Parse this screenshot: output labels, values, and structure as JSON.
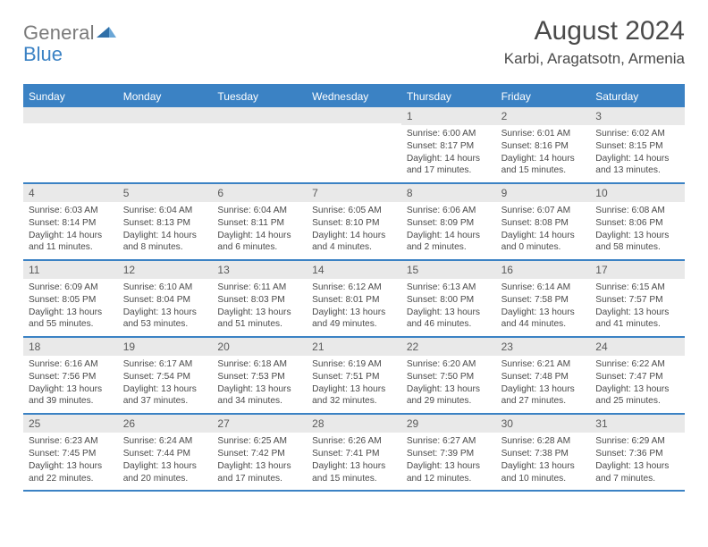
{
  "brand": {
    "part1": "General",
    "part2": "Blue"
  },
  "title": "August 2024",
  "location": "Karbi, Aragatsotn, Armenia",
  "colors": {
    "accent": "#3b82c4",
    "header_bg": "#3b82c4",
    "daynum_bg": "#e9e9e9",
    "text_dark": "#4a4a4a",
    "text_muted": "#7a7a7a",
    "white": "#ffffff"
  },
  "dow": [
    "Sunday",
    "Monday",
    "Tuesday",
    "Wednesday",
    "Thursday",
    "Friday",
    "Saturday"
  ],
  "weeks": [
    [
      {
        "n": "",
        "sr": "",
        "ss": "",
        "dl": ""
      },
      {
        "n": "",
        "sr": "",
        "ss": "",
        "dl": ""
      },
      {
        "n": "",
        "sr": "",
        "ss": "",
        "dl": ""
      },
      {
        "n": "",
        "sr": "",
        "ss": "",
        "dl": ""
      },
      {
        "n": "1",
        "sr": "Sunrise: 6:00 AM",
        "ss": "Sunset: 8:17 PM",
        "dl": "Daylight: 14 hours and 17 minutes."
      },
      {
        "n": "2",
        "sr": "Sunrise: 6:01 AM",
        "ss": "Sunset: 8:16 PM",
        "dl": "Daylight: 14 hours and 15 minutes."
      },
      {
        "n": "3",
        "sr": "Sunrise: 6:02 AM",
        "ss": "Sunset: 8:15 PM",
        "dl": "Daylight: 14 hours and 13 minutes."
      }
    ],
    [
      {
        "n": "4",
        "sr": "Sunrise: 6:03 AM",
        "ss": "Sunset: 8:14 PM",
        "dl": "Daylight: 14 hours and 11 minutes."
      },
      {
        "n": "5",
        "sr": "Sunrise: 6:04 AM",
        "ss": "Sunset: 8:13 PM",
        "dl": "Daylight: 14 hours and 8 minutes."
      },
      {
        "n": "6",
        "sr": "Sunrise: 6:04 AM",
        "ss": "Sunset: 8:11 PM",
        "dl": "Daylight: 14 hours and 6 minutes."
      },
      {
        "n": "7",
        "sr": "Sunrise: 6:05 AM",
        "ss": "Sunset: 8:10 PM",
        "dl": "Daylight: 14 hours and 4 minutes."
      },
      {
        "n": "8",
        "sr": "Sunrise: 6:06 AM",
        "ss": "Sunset: 8:09 PM",
        "dl": "Daylight: 14 hours and 2 minutes."
      },
      {
        "n": "9",
        "sr": "Sunrise: 6:07 AM",
        "ss": "Sunset: 8:08 PM",
        "dl": "Daylight: 14 hours and 0 minutes."
      },
      {
        "n": "10",
        "sr": "Sunrise: 6:08 AM",
        "ss": "Sunset: 8:06 PM",
        "dl": "Daylight: 13 hours and 58 minutes."
      }
    ],
    [
      {
        "n": "11",
        "sr": "Sunrise: 6:09 AM",
        "ss": "Sunset: 8:05 PM",
        "dl": "Daylight: 13 hours and 55 minutes."
      },
      {
        "n": "12",
        "sr": "Sunrise: 6:10 AM",
        "ss": "Sunset: 8:04 PM",
        "dl": "Daylight: 13 hours and 53 minutes."
      },
      {
        "n": "13",
        "sr": "Sunrise: 6:11 AM",
        "ss": "Sunset: 8:03 PM",
        "dl": "Daylight: 13 hours and 51 minutes."
      },
      {
        "n": "14",
        "sr": "Sunrise: 6:12 AM",
        "ss": "Sunset: 8:01 PM",
        "dl": "Daylight: 13 hours and 49 minutes."
      },
      {
        "n": "15",
        "sr": "Sunrise: 6:13 AM",
        "ss": "Sunset: 8:00 PM",
        "dl": "Daylight: 13 hours and 46 minutes."
      },
      {
        "n": "16",
        "sr": "Sunrise: 6:14 AM",
        "ss": "Sunset: 7:58 PM",
        "dl": "Daylight: 13 hours and 44 minutes."
      },
      {
        "n": "17",
        "sr": "Sunrise: 6:15 AM",
        "ss": "Sunset: 7:57 PM",
        "dl": "Daylight: 13 hours and 41 minutes."
      }
    ],
    [
      {
        "n": "18",
        "sr": "Sunrise: 6:16 AM",
        "ss": "Sunset: 7:56 PM",
        "dl": "Daylight: 13 hours and 39 minutes."
      },
      {
        "n": "19",
        "sr": "Sunrise: 6:17 AM",
        "ss": "Sunset: 7:54 PM",
        "dl": "Daylight: 13 hours and 37 minutes."
      },
      {
        "n": "20",
        "sr": "Sunrise: 6:18 AM",
        "ss": "Sunset: 7:53 PM",
        "dl": "Daylight: 13 hours and 34 minutes."
      },
      {
        "n": "21",
        "sr": "Sunrise: 6:19 AM",
        "ss": "Sunset: 7:51 PM",
        "dl": "Daylight: 13 hours and 32 minutes."
      },
      {
        "n": "22",
        "sr": "Sunrise: 6:20 AM",
        "ss": "Sunset: 7:50 PM",
        "dl": "Daylight: 13 hours and 29 minutes."
      },
      {
        "n": "23",
        "sr": "Sunrise: 6:21 AM",
        "ss": "Sunset: 7:48 PM",
        "dl": "Daylight: 13 hours and 27 minutes."
      },
      {
        "n": "24",
        "sr": "Sunrise: 6:22 AM",
        "ss": "Sunset: 7:47 PM",
        "dl": "Daylight: 13 hours and 25 minutes."
      }
    ],
    [
      {
        "n": "25",
        "sr": "Sunrise: 6:23 AM",
        "ss": "Sunset: 7:45 PM",
        "dl": "Daylight: 13 hours and 22 minutes."
      },
      {
        "n": "26",
        "sr": "Sunrise: 6:24 AM",
        "ss": "Sunset: 7:44 PM",
        "dl": "Daylight: 13 hours and 20 minutes."
      },
      {
        "n": "27",
        "sr": "Sunrise: 6:25 AM",
        "ss": "Sunset: 7:42 PM",
        "dl": "Daylight: 13 hours and 17 minutes."
      },
      {
        "n": "28",
        "sr": "Sunrise: 6:26 AM",
        "ss": "Sunset: 7:41 PM",
        "dl": "Daylight: 13 hours and 15 minutes."
      },
      {
        "n": "29",
        "sr": "Sunrise: 6:27 AM",
        "ss": "Sunset: 7:39 PM",
        "dl": "Daylight: 13 hours and 12 minutes."
      },
      {
        "n": "30",
        "sr": "Sunrise: 6:28 AM",
        "ss": "Sunset: 7:38 PM",
        "dl": "Daylight: 13 hours and 10 minutes."
      },
      {
        "n": "31",
        "sr": "Sunrise: 6:29 AM",
        "ss": "Sunset: 7:36 PM",
        "dl": "Daylight: 13 hours and 7 minutes."
      }
    ]
  ]
}
